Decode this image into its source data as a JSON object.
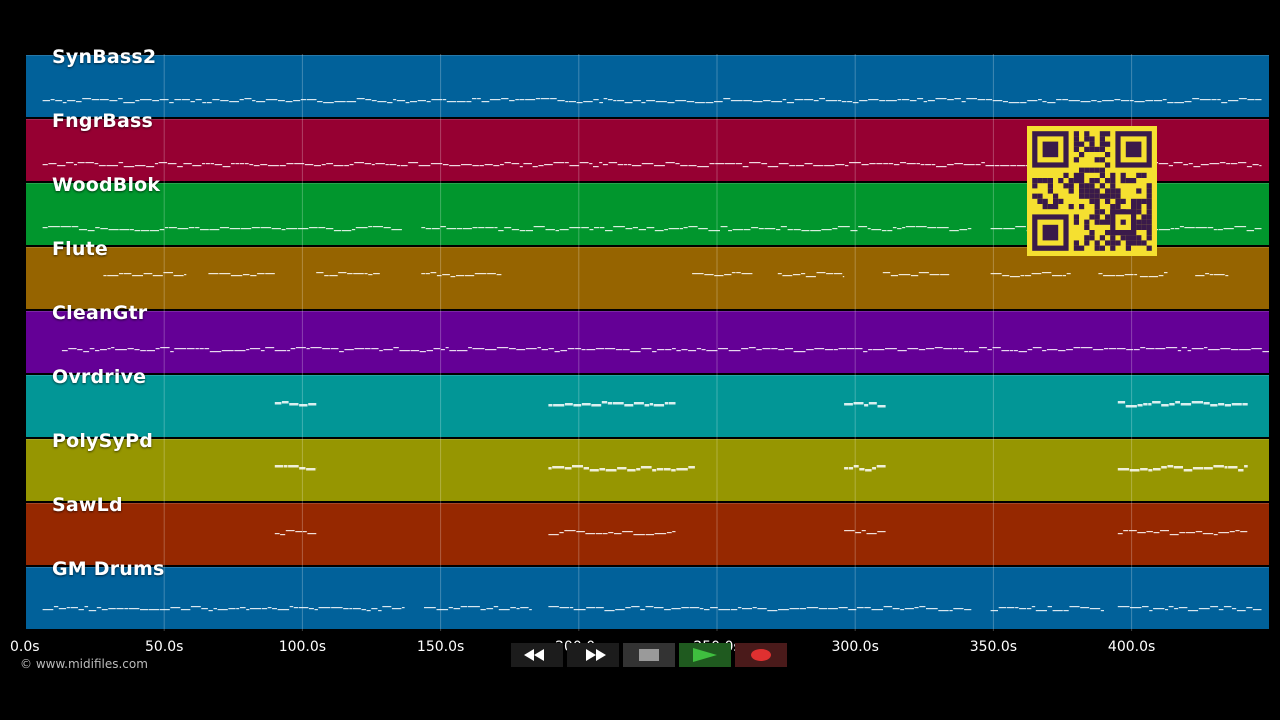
{
  "tracks": [
    {
      "name": "SynBass2",
      "color": "#01619a"
    },
    {
      "name": "FngrBass",
      "color": "#960032"
    },
    {
      "name": "WoodBlok",
      "color": "#01962d"
    },
    {
      "name": "Flute",
      "color": "#966400"
    },
    {
      "name": "CleanGtr",
      "color": "#640096"
    },
    {
      "name": "Ovrdrive",
      "color": "#029696"
    },
    {
      "name": "PolySyPd",
      "color": "#969601"
    },
    {
      "name": "SawLd",
      "color": "#962800"
    },
    {
      "name": "GM Drums",
      "color": "#01619a"
    }
  ],
  "timeline": {
    "ticks": [
      "0.0s",
      "50.0s",
      "100.0s",
      "150.0s",
      "200.0s",
      "250.0s",
      "300.0s",
      "350.0s",
      "400.0s"
    ],
    "tick_values": [
      0,
      50,
      100,
      150,
      200,
      250,
      300,
      350,
      400
    ],
    "max_seconds": 450
  },
  "copyright": "© www.midifiles.com",
  "controls": {
    "rewind": "rewind-icon",
    "fast_forward": "fast-forward-icon",
    "stop": "stop-icon",
    "play": "play-icon",
    "record": "record-icon",
    "play_color": "#3fbf3f",
    "record_color": "#e03030"
  },
  "qr": {
    "fg": "#3a1a4a",
    "bg": "#f5e030"
  }
}
